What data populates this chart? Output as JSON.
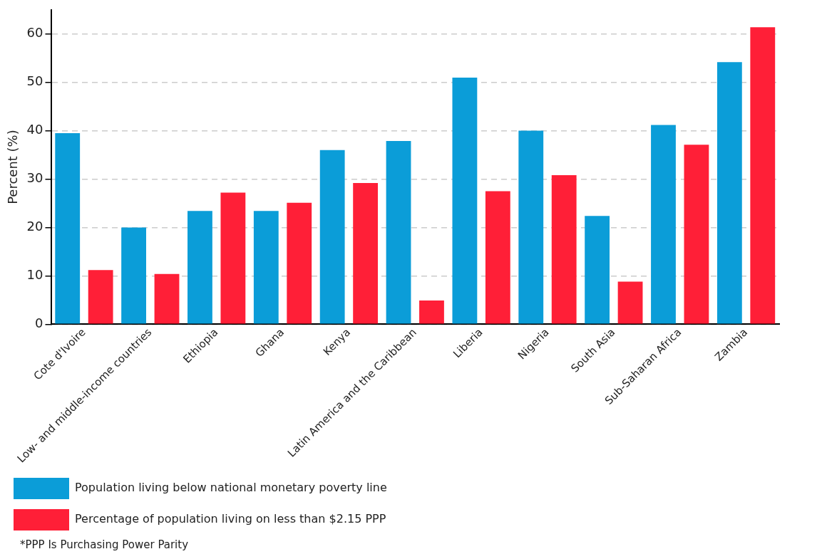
{
  "chart_data": {
    "type": "bar",
    "ylabel": "Percent (%)",
    "categories": [
      "Cote d'Ivoire",
      "Low- and middle-income countries",
      "Ethiopia",
      "Ghana",
      "Kenya",
      "Latin America and the Caribbean",
      "Liberia",
      "Nigeria",
      "South Asia",
      "Sub-Saharan Africa",
      "Zambia"
    ],
    "series": [
      {
        "name": "Population living below national monetary poverty line",
        "color": "#0b9dd8",
        "values": [
          39.5,
          20.0,
          23.4,
          23.4,
          36.0,
          37.9,
          51.0,
          40.0,
          22.4,
          41.2,
          54.2
        ]
      },
      {
        "name": "Percentage of population living on less than $2.15 PPP",
        "color": "#ff1f37",
        "values": [
          11.2,
          10.4,
          27.2,
          25.1,
          29.2,
          4.9,
          27.5,
          30.8,
          8.8,
          37.1,
          61.4
        ]
      }
    ],
    "ylim": [
      0,
      65
    ],
    "yticks": [
      0,
      10,
      20,
      30,
      40,
      50,
      60
    ],
    "grid": "y",
    "legend": "bottom",
    "annotations": [
      "*PPP Is Purchasing Power Parity"
    ]
  }
}
